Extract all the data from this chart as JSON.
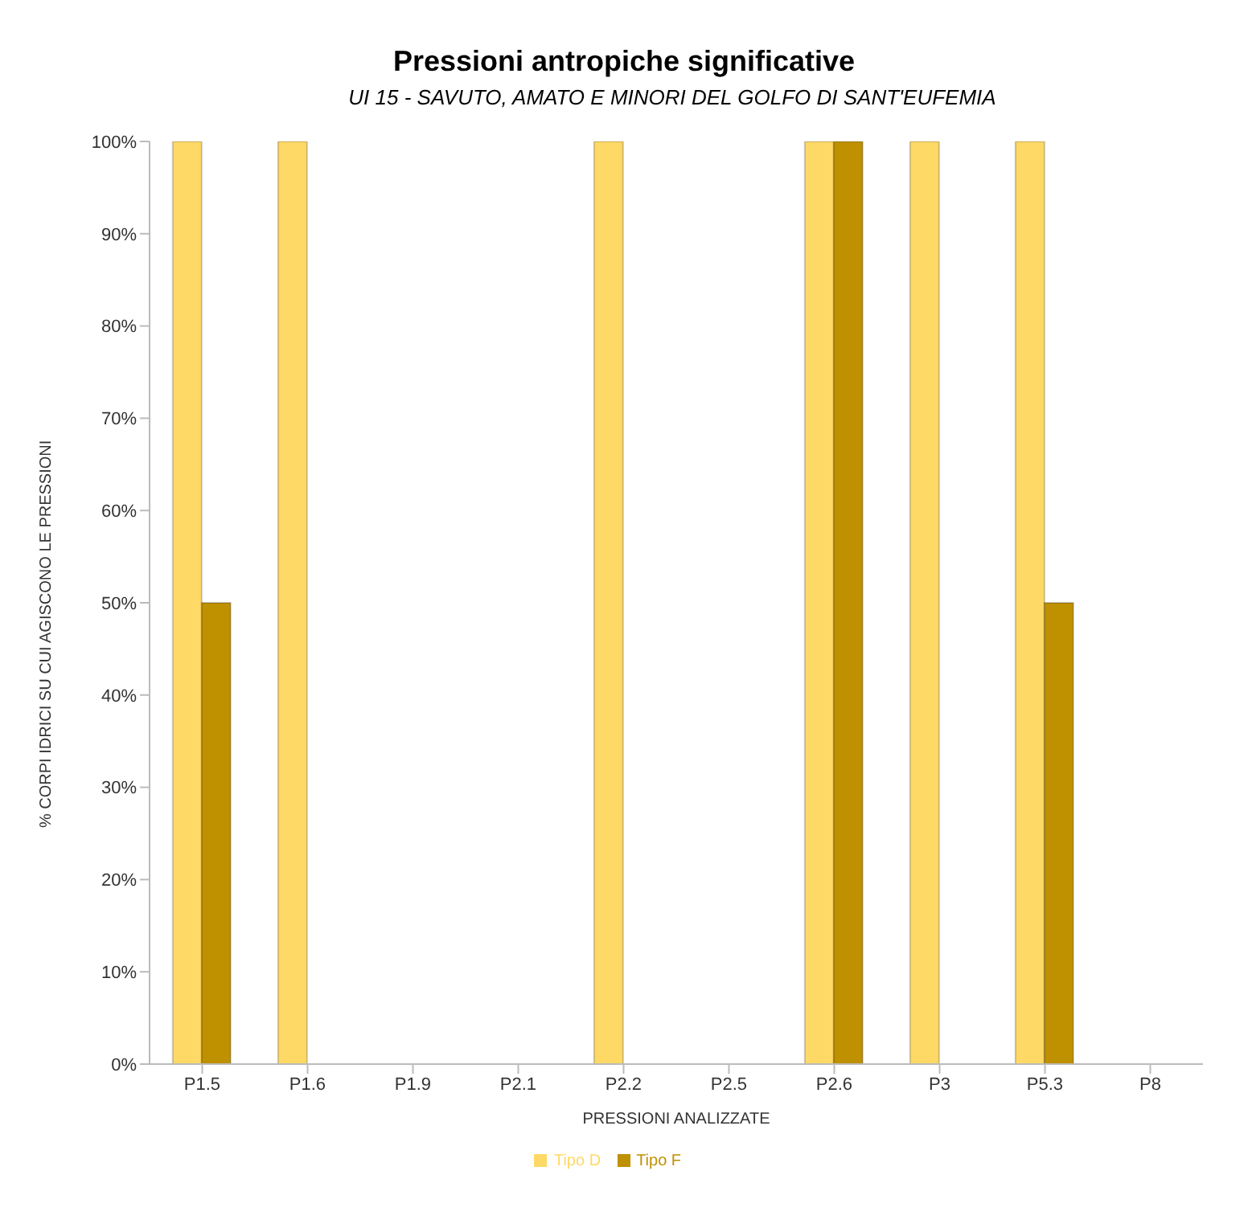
{
  "chart_data": {
    "type": "bar",
    "title": "Pressioni antropiche significative",
    "subtitle": "UI 15 - SAVUTO,  AMATO  E MINORI  DEL GOLFO DI SANT'EUFEMIA",
    "xlabel": "PRESSIONI ANALIZZATE",
    "ylabel": "% CORPI IDRICI SU CUI AGISCONO LE PRESSIONI",
    "categories": [
      "P1.5",
      "P1.6",
      "P1.9",
      "P2.1",
      "P2.2",
      "P2.5",
      "P2.6",
      "P3",
      "P5.3",
      "P8"
    ],
    "series": [
      {
        "name": "Tipo D",
        "color": "#ffd966",
        "values": [
          100,
          100,
          0,
          0,
          100,
          0,
          100,
          100,
          100,
          0
        ]
      },
      {
        "name": "Tipo F",
        "color": "#bf9000",
        "values": [
          50,
          0,
          0,
          0,
          0,
          0,
          100,
          0,
          50,
          0
        ]
      }
    ],
    "ylim": [
      0,
      100
    ],
    "yticks": [
      {
        "value": 0,
        "label": "0%"
      },
      {
        "value": 10,
        "label": "10%"
      },
      {
        "value": 20,
        "label": "20%"
      },
      {
        "value": 30,
        "label": "30%"
      },
      {
        "value": 40,
        "label": "40%"
      },
      {
        "value": 50,
        "label": "50%"
      },
      {
        "value": 60,
        "label": "60%"
      },
      {
        "value": 70,
        "label": "70%"
      },
      {
        "value": 80,
        "label": "80%"
      },
      {
        "value": 90,
        "label": "90%"
      },
      {
        "value": 100,
        "label": "100%"
      }
    ],
    "grid": false,
    "legend": "bottom"
  }
}
